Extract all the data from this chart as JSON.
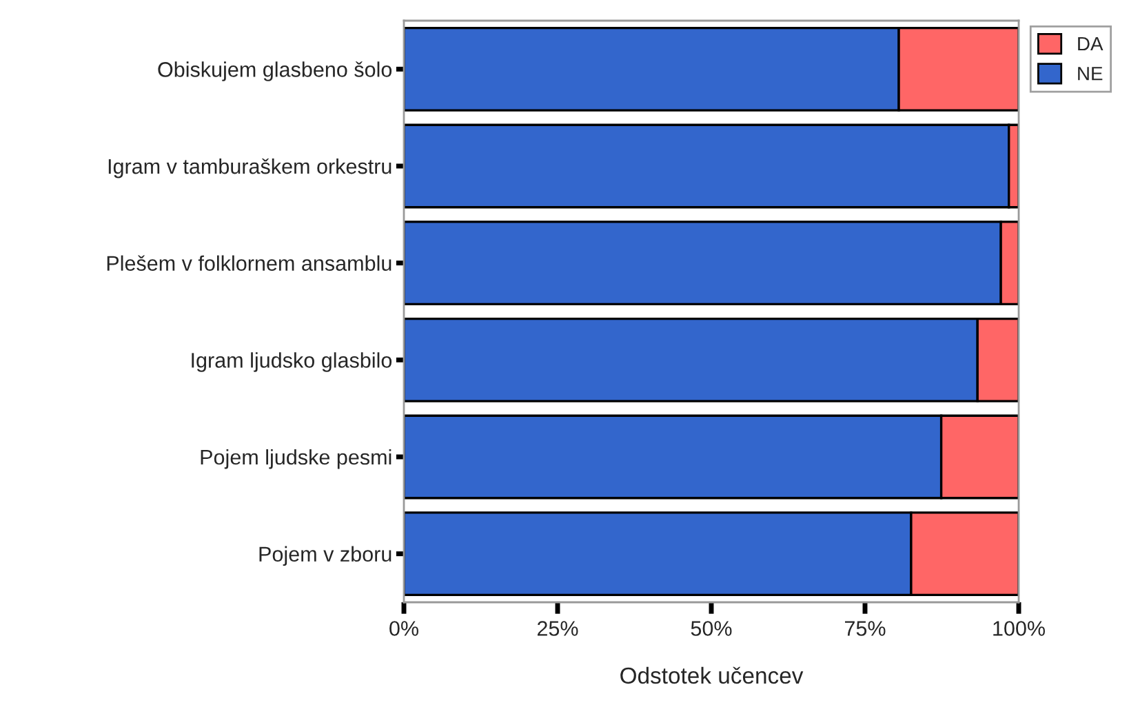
{
  "chart_data": {
    "type": "bar",
    "orientation": "horizontal",
    "stacked": true,
    "xlabel": "Odstotek učencev",
    "categories": [
      "Obiskujem glasbeno šolo",
      "Igram v tamburaškem orkestru",
      "Plešem v folklornem ansamblu",
      "Igram ljudsko glasbilo",
      "Pojem ljudske pesmi",
      "Pojem v zboru"
    ],
    "series": [
      {
        "name": "NE",
        "color": "#3366cc",
        "values": [
          80.5,
          98.4,
          97.1,
          93.3,
          87.4,
          82.5
        ]
      },
      {
        "name": "DA",
        "color": "#ff6666",
        "values": [
          19.5,
          1.6,
          2.9,
          6.7,
          12.6,
          17.5
        ]
      }
    ],
    "xlim": [
      0,
      100
    ],
    "xticks": [
      {
        "value": 0,
        "label": "0%"
      },
      {
        "value": 25,
        "label": "25%"
      },
      {
        "value": 50,
        "label": "50%"
      },
      {
        "value": 75,
        "label": "75%"
      },
      {
        "value": 100,
        "label": "100%"
      }
    ],
    "legend": "top right",
    "grid": false
  }
}
